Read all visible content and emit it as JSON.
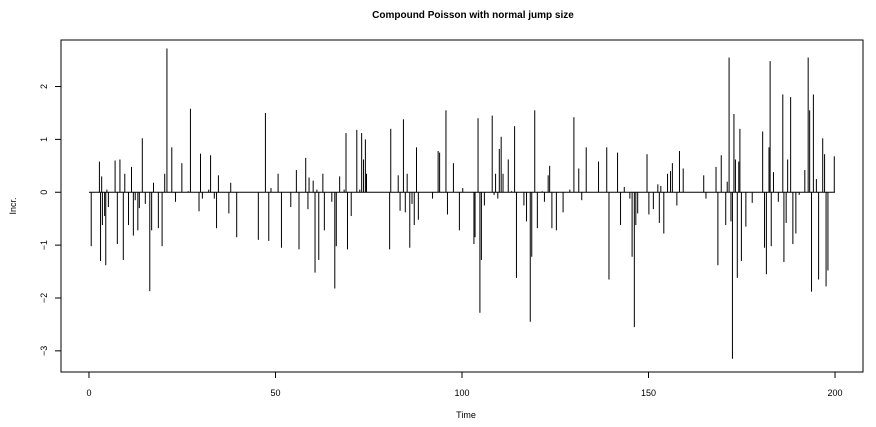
{
  "chart_data": {
    "type": "line",
    "title": "Compound Poisson with normal jump size",
    "xlabel": "Time",
    "ylabel": "Incr.",
    "xlim": [
      -7.5,
      207.5
    ],
    "ylim": [
      -3.4,
      2.88
    ],
    "x_ticks": [
      0,
      50,
      100,
      150,
      200
    ],
    "y_ticks": [
      -3,
      -2,
      -1,
      0,
      1,
      2
    ],
    "grid": false,
    "legend": "none",
    "line_color": "#000000",
    "baseline": 0,
    "time_range": [
      0,
      200
    ],
    "jumps": [
      [
        0.6,
        -1.02
      ],
      [
        2.8,
        0.58
      ],
      [
        3.1,
        -1.3
      ],
      [
        3.4,
        0.3
      ],
      [
        3.6,
        -0.62
      ],
      [
        4.2,
        -0.45
      ],
      [
        4.5,
        -1.38
      ],
      [
        4.8,
        0.05
      ],
      [
        5.2,
        -0.28
      ],
      [
        7.0,
        0.6
      ],
      [
        7.6,
        -0.98
      ],
      [
        8.3,
        0.62
      ],
      [
        9.2,
        -1.28
      ],
      [
        9.6,
        0.35
      ],
      [
        10.6,
        -0.62
      ],
      [
        11.4,
        0.48
      ],
      [
        11.9,
        -0.82
      ],
      [
        12.4,
        -0.15
      ],
      [
        13.1,
        -0.72
      ],
      [
        13.5,
        -0.3
      ],
      [
        14.3,
        1.02
      ],
      [
        15.1,
        -0.22
      ],
      [
        16.3,
        -1.87
      ],
      [
        16.8,
        -0.72
      ],
      [
        17.3,
        0.18
      ],
      [
        18.6,
        -0.68
      ],
      [
        19.6,
        -1.02
      ],
      [
        20.3,
        0.35
      ],
      [
        20.9,
        2.72
      ],
      [
        22.2,
        0.85
      ],
      [
        23.2,
        -0.18
      ],
      [
        24.9,
        0.55
      ],
      [
        26.6,
        0.02
      ],
      [
        27.2,
        1.58
      ],
      [
        29.5,
        -0.36
      ],
      [
        29.9,
        0.73
      ],
      [
        30.4,
        -0.12
      ],
      [
        32.1,
        0.05
      ],
      [
        32.6,
        0.7
      ],
      [
        33.6,
        -0.12
      ],
      [
        34.2,
        -0.68
      ],
      [
        34.7,
        0.32
      ],
      [
        37.5,
        -0.4
      ],
      [
        38.0,
        0.18
      ],
      [
        39.6,
        -0.85
      ],
      [
        45.4,
        -0.9
      ],
      [
        47.3,
        1.5
      ],
      [
        48.2,
        -0.92
      ],
      [
        48.8,
        0.08
      ],
      [
        50.7,
        0.35
      ],
      [
        51.6,
        -1.05
      ],
      [
        54.1,
        -0.28
      ],
      [
        55.6,
        0.42
      ],
      [
        56.3,
        -1.08
      ],
      [
        58.1,
        0.65
      ],
      [
        58.7,
        -0.32
      ],
      [
        59.0,
        0.28
      ],
      [
        60.1,
        0.22
      ],
      [
        60.6,
        -1.52
      ],
      [
        61.1,
        0.05
      ],
      [
        61.6,
        -1.28
      ],
      [
        62.7,
        0.35
      ],
      [
        63.1,
        -0.72
      ],
      [
        65.1,
        -0.18
      ],
      [
        65.9,
        -1.82
      ],
      [
        66.3,
        -1.02
      ],
      [
        67.2,
        0.3
      ],
      [
        68.4,
        0.05
      ],
      [
        68.9,
        1.12
      ],
      [
        69.3,
        -1.08
      ],
      [
        70.3,
        -0.45
      ],
      [
        71.8,
        1.18
      ],
      [
        72.6,
        0.05
      ],
      [
        73.1,
        1.12
      ],
      [
        73.6,
        0.62
      ],
      [
        74.1,
        1.0
      ],
      [
        74.4,
        0.35
      ],
      [
        80.6,
        -1.08
      ],
      [
        80.9,
        1.2
      ],
      [
        82.9,
        0.32
      ],
      [
        83.4,
        -0.35
      ],
      [
        84.3,
        1.38
      ],
      [
        84.8,
        -0.38
      ],
      [
        85.3,
        0.35
      ],
      [
        86.0,
        -1.05
      ],
      [
        86.6,
        -0.22
      ],
      [
        87.2,
        -0.62
      ],
      [
        87.8,
        0.85
      ],
      [
        88.3,
        -0.52
      ],
      [
        92.1,
        -0.12
      ],
      [
        93.6,
        0.78
      ],
      [
        94.0,
        0.75
      ],
      [
        95.7,
        1.55
      ],
      [
        96.1,
        -0.42
      ],
      [
        97.7,
        0.55
      ],
      [
        99.3,
        -0.72
      ],
      [
        100.2,
        0.08
      ],
      [
        103.2,
        -0.98
      ],
      [
        103.5,
        -0.85
      ],
      [
        104.3,
        1.4
      ],
      [
        104.8,
        -2.28
      ],
      [
        105.2,
        -1.28
      ],
      [
        106.0,
        -0.25
      ],
      [
        108.1,
        1.45
      ],
      [
        108.6,
        -0.05
      ],
      [
        109.0,
        0.35
      ],
      [
        109.6,
        -0.12
      ],
      [
        110.0,
        0.82
      ],
      [
        110.5,
        1.05
      ],
      [
        111.0,
        0.35
      ],
      [
        112.4,
        0.62
      ],
      [
        113.3,
        0.02
      ],
      [
        114.1,
        1.25
      ],
      [
        114.6,
        -1.62
      ],
      [
        116.6,
        -0.25
      ],
      [
        117.3,
        -0.55
      ],
      [
        118.3,
        -2.45
      ],
      [
        118.7,
        -1.22
      ],
      [
        119.5,
        1.55
      ],
      [
        120.2,
        -0.68
      ],
      [
        121.5,
        0.02
      ],
      [
        122.1,
        -0.18
      ],
      [
        123.1,
        0.32
      ],
      [
        123.5,
        0.5
      ],
      [
        124.1,
        -0.68
      ],
      [
        125.3,
        -0.72
      ],
      [
        127.1,
        -0.38
      ],
      [
        128.9,
        0.05
      ],
      [
        130.0,
        1.42
      ],
      [
        131.3,
        0.45
      ],
      [
        132.1,
        -0.15
      ],
      [
        133.3,
        0.85
      ],
      [
        136.6,
        0.58
      ],
      [
        138.8,
        0.85
      ],
      [
        139.4,
        -1.65
      ],
      [
        141.7,
        0.75
      ],
      [
        142.5,
        -0.62
      ],
      [
        143.5,
        0.1
      ],
      [
        145.0,
        -0.12
      ],
      [
        145.6,
        -1.22
      ],
      [
        146.2,
        -2.55
      ],
      [
        146.6,
        -0.62
      ],
      [
        147.1,
        -0.4
      ],
      [
        149.6,
        0.72
      ],
      [
        150.1,
        -0.42
      ],
      [
        151.3,
        -0.32
      ],
      [
        152.5,
        0.15
      ],
      [
        152.9,
        -0.58
      ],
      [
        153.3,
        0.12
      ],
      [
        154.1,
        -0.78
      ],
      [
        155.1,
        0.35
      ],
      [
        155.9,
        0.4
      ],
      [
        156.4,
        0.55
      ],
      [
        157.6,
        -0.25
      ],
      [
        158.3,
        0.78
      ],
      [
        159.3,
        0.45
      ],
      [
        164.8,
        0.32
      ],
      [
        165.4,
        -0.12
      ],
      [
        168.1,
        0.48
      ],
      [
        168.6,
        -1.38
      ],
      [
        169.5,
        0.7
      ],
      [
        170.7,
        -0.62
      ],
      [
        171.1,
        0.2
      ],
      [
        171.6,
        2.55
      ],
      [
        172.1,
        -0.55
      ],
      [
        172.5,
        -3.15
      ],
      [
        172.9,
        1.48
      ],
      [
        173.3,
        0.62
      ],
      [
        173.8,
        -1.62
      ],
      [
        174.2,
        0.58
      ],
      [
        174.5,
        1.2
      ],
      [
        174.9,
        -1.3
      ],
      [
        176.1,
        -0.65
      ],
      [
        177.8,
        -0.2
      ],
      [
        180.6,
        1.15
      ],
      [
        181.1,
        -1.05
      ],
      [
        181.6,
        -1.55
      ],
      [
        182.3,
        0.85
      ],
      [
        182.6,
        2.48
      ],
      [
        182.9,
        -1.02
      ],
      [
        183.5,
        0.38
      ],
      [
        184.8,
        -0.18
      ],
      [
        186.0,
        1.85
      ],
      [
        186.3,
        -1.32
      ],
      [
        186.9,
        -0.58
      ],
      [
        187.3,
        0.62
      ],
      [
        188.1,
        1.8
      ],
      [
        188.7,
        -0.98
      ],
      [
        189.5,
        -0.78
      ],
      [
        190.4,
        -0.05
      ],
      [
        191.9,
        0.42
      ],
      [
        192.8,
        2.55
      ],
      [
        193.2,
        1.55
      ],
      [
        193.7,
        -1.88
      ],
      [
        194.2,
        1.85
      ],
      [
        195.0,
        0.25
      ],
      [
        195.6,
        -1.65
      ],
      [
        196.7,
        1.02
      ],
      [
        197.2,
        0.72
      ],
      [
        197.6,
        -1.78
      ],
      [
        198.1,
        -1.48
      ],
      [
        199.8,
        0.68
      ]
    ]
  }
}
